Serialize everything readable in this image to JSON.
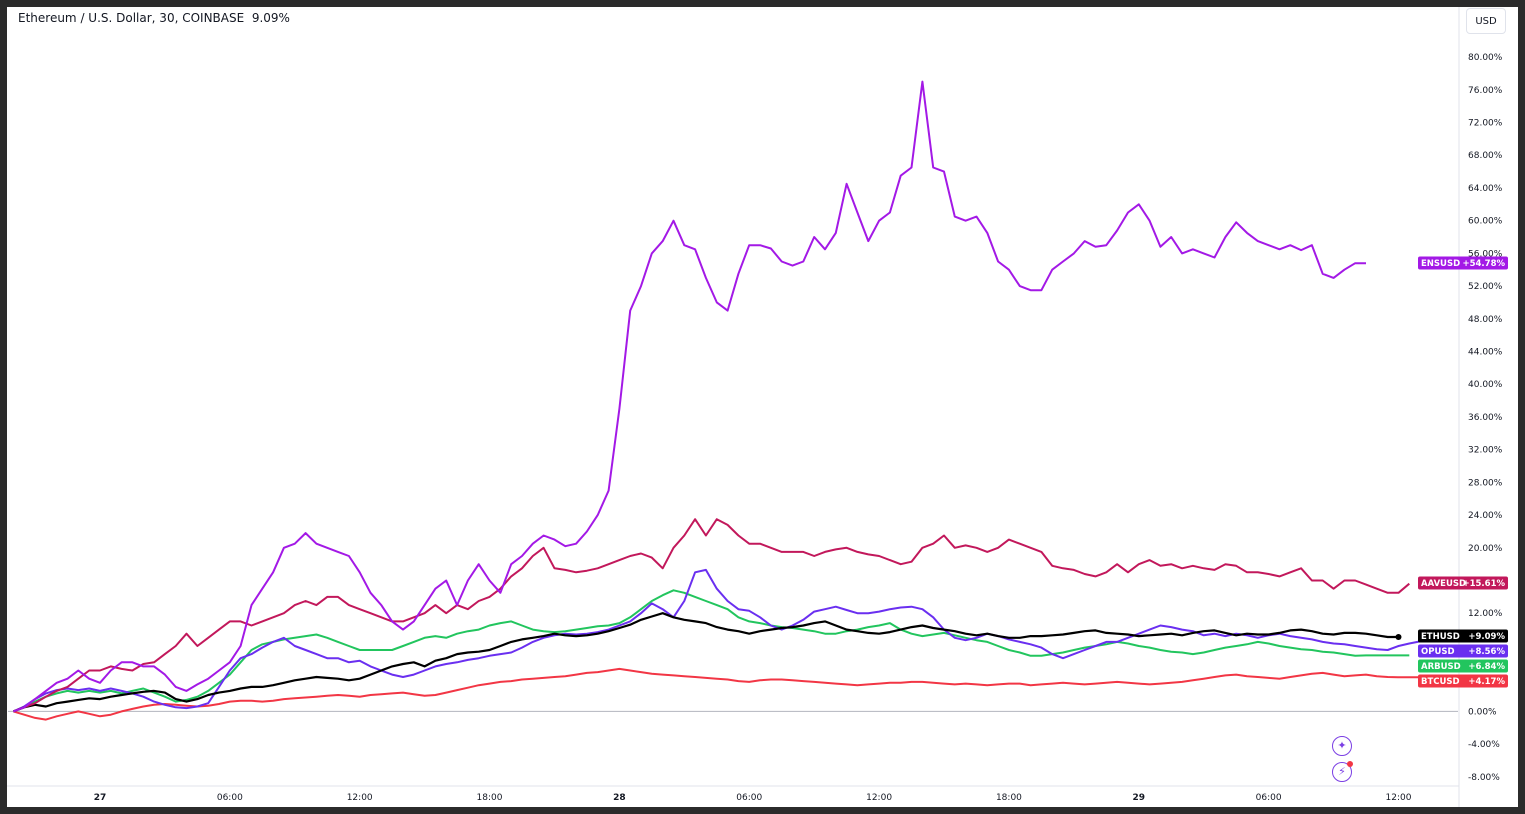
{
  "header": {
    "symbol_title": "Ethereum / U.S. Dollar, 30, COINBASE",
    "change_value": "9.09%",
    "currency_button": "USD"
  },
  "colors": {
    "ENSUSD": "#a319e6",
    "AAVEUSD": "#c2185b",
    "ETHUSD": "#000000",
    "OPUSD": "#6a2ff0",
    "ARBUSD": "#22c55e",
    "BTCUSD": "#f23645",
    "grid_zero": "#b2b5be",
    "axis_text": "#131722"
  },
  "icons": [
    "sparkle-icon",
    "lightning-icon"
  ],
  "chart_data": {
    "type": "line",
    "title": "Ethereum / U.S. Dollar, 30, COINBASE",
    "xlabel": "",
    "ylabel": "",
    "y_unit": "%",
    "ylim": [
      -9.0,
      86.0
    ],
    "y_ticks": [
      "80.00%",
      "76.00%",
      "72.00%",
      "68.00%",
      "64.00%",
      "60.00%",
      "56.00%",
      "52.00%",
      "48.00%",
      "44.00%",
      "40.00%",
      "36.00%",
      "32.00%",
      "28.00%",
      "24.00%",
      "20.00%",
      "12.00%",
      "0.00%",
      "-4.00%",
      "-8.00%"
    ],
    "y_tick_values": [
      80,
      76,
      72,
      68,
      64,
      60,
      56,
      52,
      48,
      44,
      40,
      36,
      32,
      28,
      24,
      20,
      12,
      0,
      -4,
      -8
    ],
    "x_ticks": [
      {
        "label": "27",
        "t": 8,
        "bold": true
      },
      {
        "label": "06:00",
        "t": 20,
        "bold": false
      },
      {
        "label": "12:00",
        "t": 32,
        "bold": false
      },
      {
        "label": "18:00",
        "t": 44,
        "bold": false
      },
      {
        "label": "28",
        "t": 56,
        "bold": true
      },
      {
        "label": "06:00",
        "t": 68,
        "bold": false
      },
      {
        "label": "12:00",
        "t": 80,
        "bold": false
      },
      {
        "label": "18:00",
        "t": 92,
        "bold": false
      },
      {
        "label": "29",
        "t": 104,
        "bold": true
      },
      {
        "label": "06:00",
        "t": 116,
        "bold": false
      },
      {
        "label": "12:00",
        "t": 128,
        "bold": false
      }
    ],
    "x_range": [
      -0.5,
      133.5
    ],
    "grid": false,
    "series": [
      {
        "name": "ENSUSD",
        "tag": "+54.78%",
        "last": 54.78,
        "color": "#a319e6",
        "values": [
          0,
          0.5,
          1.5,
          2.5,
          3.5,
          4,
          5,
          4,
          3.5,
          5,
          6,
          6,
          5.5,
          5.5,
          4.5,
          3,
          2.5,
          3.3,
          4,
          5,
          6,
          8,
          13,
          15,
          17,
          20,
          20.5,
          21.8,
          20.5,
          20,
          19.5,
          19,
          17,
          14.5,
          13,
          11,
          10,
          11,
          13,
          15,
          16,
          13,
          16,
          18,
          16,
          14.5,
          18,
          19,
          20.5,
          21.5,
          21,
          20.2,
          20.5,
          22,
          24,
          27,
          37,
          49,
          52,
          56,
          57.5,
          60,
          57,
          56.5,
          53,
          50,
          49,
          53.5,
          57,
          57,
          56.6,
          55,
          54.5,
          55,
          58,
          56.5,
          58.5,
          64.5,
          61,
          57.5,
          60,
          61,
          65.5,
          66.5,
          77,
          66.5,
          66,
          60.5,
          60,
          60.5,
          58.5,
          55,
          54,
          52,
          51.5,
          51.5,
          54,
          55,
          56,
          57.5,
          56.8,
          57,
          58.8,
          61,
          62,
          60,
          56.8,
          58,
          56,
          56.5,
          56,
          55.5,
          58,
          59.8,
          58.5,
          57.5,
          57,
          56.5,
          57,
          56.4,
          57,
          53.5,
          53,
          54,
          54.8,
          54.78
        ]
      },
      {
        "name": "AAVEUSD",
        "tag": "+15.61%",
        "last": 15.61,
        "color": "#c2185b",
        "values": [
          0,
          0.5,
          1,
          1.8,
          2.5,
          3,
          4,
          5,
          5,
          5.5,
          5.2,
          5,
          5.8,
          6,
          7,
          8,
          9.5,
          8,
          9,
          10,
          11,
          11,
          10.5,
          11,
          11.5,
          12,
          13,
          13.5,
          13,
          14,
          14,
          13,
          12.5,
          12,
          11.5,
          11,
          11,
          11.5,
          12,
          13,
          12,
          13,
          12.5,
          13.5,
          14,
          15,
          16.5,
          17.5,
          19,
          20,
          17.5,
          17.3,
          17,
          17.2,
          17.5,
          18,
          18.5,
          19,
          19.3,
          18.8,
          17.5,
          20,
          21.5,
          23.5,
          21.5,
          23.5,
          22.8,
          21.5,
          20.5,
          20.5,
          20,
          19.5,
          19.5,
          19.5,
          19,
          19.5,
          19.8,
          20,
          19.5,
          19.2,
          19,
          18.5,
          18,
          18.3,
          20,
          20.5,
          21.5,
          20,
          20.3,
          20,
          19.5,
          20,
          21,
          20.5,
          20,
          19.5,
          17.8,
          17.5,
          17.3,
          16.8,
          16.5,
          17,
          18,
          17,
          18,
          18.5,
          17.8,
          18,
          17.5,
          17.8,
          17.5,
          17.3,
          18,
          17.8,
          17,
          17,
          16.8,
          16.5,
          17,
          17.5,
          16,
          16,
          15,
          16,
          16,
          15.5,
          15,
          14.5,
          14.5,
          15.61
        ]
      },
      {
        "name": "ETHUSD",
        "tag": "+9.09%",
        "last": 9.09,
        "color": "#000000",
        "values": [
          0,
          0.5,
          0.8,
          0.6,
          1,
          1.2,
          1.4,
          1.6,
          1.5,
          1.8,
          2,
          2.2,
          2.4,
          2.5,
          2.3,
          1.5,
          1.2,
          1.5,
          2,
          2.3,
          2.5,
          2.8,
          3,
          3,
          3.2,
          3.5,
          3.8,
          4,
          4.2,
          4.1,
          4,
          3.8,
          4,
          4.5,
          5,
          5.5,
          5.8,
          6,
          5.5,
          6.2,
          6.5,
          7,
          7.2,
          7.3,
          7.5,
          8,
          8.5,
          8.8,
          9,
          9.2,
          9.5,
          9.3,
          9.2,
          9.3,
          9.5,
          9.8,
          10.2,
          10.6,
          11.2,
          11.6,
          12,
          11.5,
          11.2,
          11,
          10.8,
          10.3,
          10,
          9.8,
          9.5,
          9.8,
          10,
          10.2,
          10.3,
          10.5,
          10.8,
          11,
          10.5,
          10,
          9.8,
          9.6,
          9.5,
          9.7,
          10,
          10.3,
          10.5,
          10.2,
          10,
          9.8,
          9.5,
          9.3,
          9.5,
          9.2,
          9,
          9,
          9.2,
          9.2,
          9.3,
          9.4,
          9.6,
          9.8,
          9.9,
          9.6,
          9.5,
          9.4,
          9.2,
          9.3,
          9.4,
          9.5,
          9.3,
          9.6,
          9.8,
          9.9,
          9.6,
          9.3,
          9.5,
          9.4,
          9.4,
          9.6,
          9.9,
          10,
          9.8,
          9.5,
          9.4,
          9.6,
          9.6,
          9.5,
          9.3,
          9.09,
          9.09
        ]
      },
      {
        "name": "OPUSD",
        "tag": "+8.56%",
        "last": 8.56,
        "color": "#6a2ff0",
        "values": [
          0,
          0.6,
          1.5,
          2.2,
          2.6,
          2.8,
          2.6,
          2.8,
          2.5,
          2.8,
          2.5,
          2.2,
          1.8,
          1.2,
          0.8,
          0.5,
          0.4,
          0.6,
          1,
          3,
          5,
          6.5,
          7,
          7.8,
          8.5,
          9,
          8,
          7.5,
          7,
          6.5,
          6.5,
          6,
          6.2,
          5.5,
          5,
          4.5,
          4.2,
          4.5,
          5,
          5.5,
          5.8,
          6,
          6.3,
          6.5,
          6.8,
          7,
          7.2,
          7.8,
          8.5,
          9,
          9.3,
          9.5,
          9.4,
          9.5,
          9.7,
          10,
          10.5,
          11,
          12,
          13.2,
          12.5,
          11.5,
          13.5,
          17,
          17.3,
          15,
          13.5,
          12.5,
          12.3,
          11.5,
          10.5,
          10,
          10.5,
          11.2,
          12.2,
          12.5,
          12.8,
          12.4,
          12,
          12,
          12.2,
          12.5,
          12.7,
          12.8,
          12.5,
          11.5,
          10,
          9,
          8.7,
          9,
          9.5,
          9.2,
          8.8,
          8.5,
          8.2,
          7.8,
          7,
          6.5,
          7,
          7.5,
          8,
          8.5,
          8.5,
          9,
          9.5,
          10,
          10.5,
          10.3,
          10,
          9.8,
          9.3,
          9.5,
          9.2,
          9.5,
          9.3,
          9,
          9.3,
          9.5,
          9.2,
          9,
          8.8,
          8.5,
          8.3,
          8.2,
          8,
          7.8,
          7.6,
          7.5,
          8,
          8.3,
          8.56,
          8.56
        ]
      },
      {
        "name": "ARBUSD",
        "tag": "+6.84%",
        "last": 6.84,
        "color": "#22c55e",
        "values": [
          0,
          0.5,
          1.2,
          1.8,
          2.2,
          2.5,
          2.3,
          2.5,
          2.3,
          2.5,
          2.2,
          2.5,
          2.8,
          2.3,
          1.8,
          1.2,
          1.4,
          1.8,
          2.5,
          3.5,
          4.5,
          6,
          7.5,
          8.2,
          8.5,
          8.8,
          9,
          9.2,
          9.4,
          9,
          8.5,
          8,
          7.5,
          7.5,
          7.5,
          7.5,
          8,
          8.5,
          9,
          9.2,
          9,
          9.5,
          9.8,
          10,
          10.5,
          10.8,
          11,
          10.5,
          10,
          9.8,
          9.7,
          9.8,
          10,
          10.2,
          10.4,
          10.5,
          10.8,
          11.5,
          12.5,
          13.5,
          14.2,
          14.8,
          14.5,
          14,
          13.5,
          13,
          12.5,
          11.5,
          11,
          10.8,
          10.5,
          10.3,
          10.2,
          10,
          9.8,
          9.5,
          9.5,
          9.8,
          10,
          10.3,
          10.5,
          10.8,
          10,
          9.5,
          9.2,
          9.4,
          9.6,
          9.3,
          9,
          8.7,
          8.5,
          8,
          7.5,
          7.2,
          6.8,
          6.8,
          7,
          7.2,
          7.5,
          7.8,
          8,
          8.2,
          8.5,
          8.3,
          8,
          7.8,
          7.5,
          7.3,
          7.2,
          7,
          7.2,
          7.5,
          7.8,
          8,
          8.2,
          8.5,
          8.3,
          8,
          7.8,
          7.6,
          7.5,
          7.3,
          7.2,
          7,
          6.8,
          6.84,
          6.84,
          6.84,
          6.84,
          6.84
        ]
      },
      {
        "name": "BTCUSD",
        "tag": "+4.17%",
        "last": 4.17,
        "color": "#f23645",
        "values": [
          0,
          -0.4,
          -0.8,
          -1,
          -0.6,
          -0.3,
          0,
          -0.3,
          -0.6,
          -0.4,
          0,
          0.3,
          0.6,
          0.8,
          0.9,
          0.8,
          0.7,
          0.6,
          0.7,
          0.9,
          1.2,
          1.3,
          1.3,
          1.2,
          1.3,
          1.5,
          1.6,
          1.7,
          1.8,
          1.9,
          2,
          1.9,
          1.8,
          2,
          2.1,
          2.2,
          2.3,
          2.1,
          1.9,
          2,
          2.3,
          2.6,
          2.9,
          3.2,
          3.4,
          3.6,
          3.7,
          3.9,
          4,
          4.1,
          4.2,
          4.3,
          4.5,
          4.7,
          4.8,
          5,
          5.2,
          5,
          4.8,
          4.6,
          4.5,
          4.4,
          4.3,
          4.2,
          4.1,
          4,
          3.9,
          3.7,
          3.6,
          3.8,
          3.9,
          3.9,
          3.8,
          3.7,
          3.6,
          3.5,
          3.4,
          3.3,
          3.2,
          3.3,
          3.4,
          3.5,
          3.5,
          3.6,
          3.6,
          3.5,
          3.4,
          3.3,
          3.4,
          3.3,
          3.2,
          3.3,
          3.4,
          3.4,
          3.2,
          3.3,
          3.4,
          3.5,
          3.4,
          3.3,
          3.4,
          3.5,
          3.6,
          3.5,
          3.4,
          3.3,
          3.4,
          3.5,
          3.6,
          3.8,
          4,
          4.2,
          4.4,
          4.5,
          4.3,
          4.2,
          4.1,
          4,
          4.2,
          4.4,
          4.6,
          4.7,
          4.5,
          4.3,
          4.4,
          4.5,
          4.3,
          4.2,
          4.17,
          4.17,
          4.17,
          4.17,
          4.17
        ]
      }
    ]
  }
}
